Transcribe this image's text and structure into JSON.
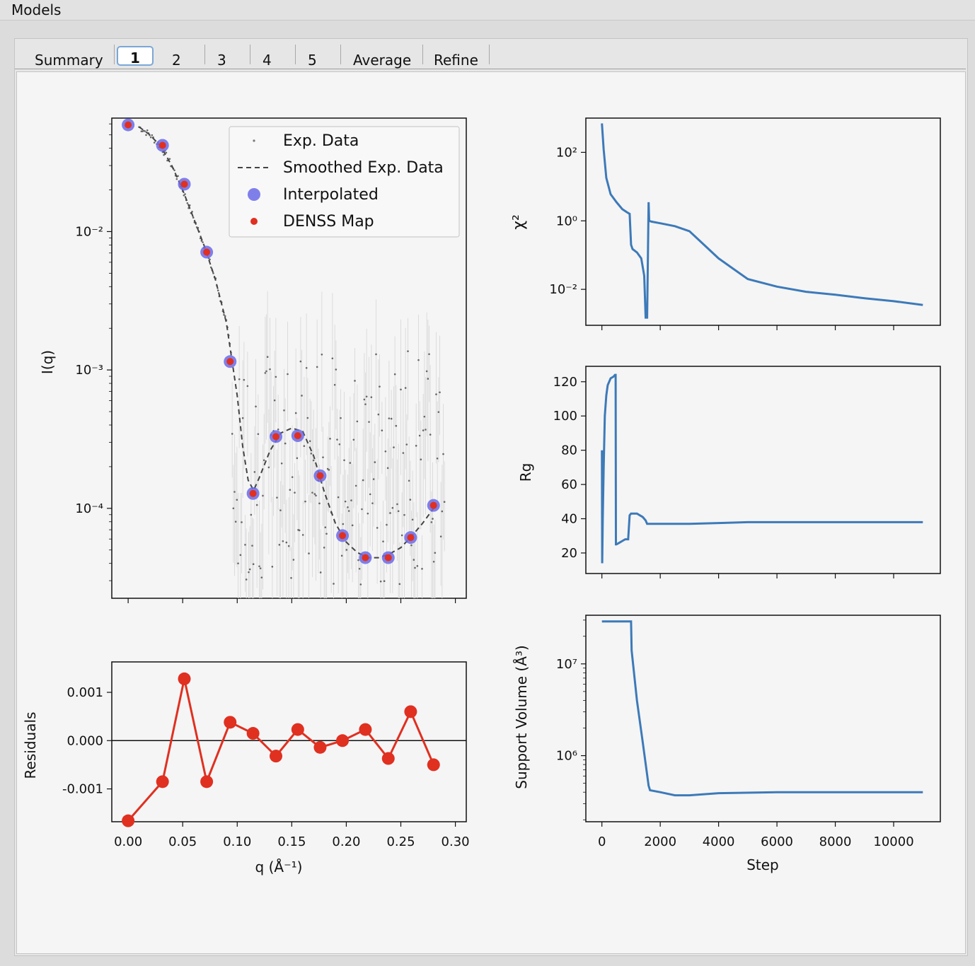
{
  "window": {
    "title": "Models"
  },
  "tabs": [
    {
      "label": "Summary",
      "active": false
    },
    {
      "label": "1",
      "active": true
    },
    {
      "label": "2",
      "active": false
    },
    {
      "label": "3",
      "active": false
    },
    {
      "label": "4",
      "active": false
    },
    {
      "label": "5",
      "active": false
    },
    {
      "label": "Average",
      "active": false
    },
    {
      "label": "Refine",
      "active": false
    }
  ],
  "colors": {
    "exp_data": "#666666",
    "smoothed": "#444444",
    "interpolated": "#6a6ae8",
    "denss": "#e03020",
    "residual": "#e03020",
    "trace": "#3d7ab8"
  },
  "chart_data": [
    {
      "type": "scatter",
      "name": "intensity",
      "ylabel": "I(q)",
      "xlabel": "",
      "yscale": "log",
      "ytick_labels": [
        "10⁻⁴",
        "10⁻³",
        "10⁻²"
      ],
      "legend": [
        "Exp. Data",
        "Smoothed Exp. Data",
        "Interpolated",
        "DENSS Map"
      ],
      "legend_position": "top-right",
      "xlim": [
        -0.015,
        0.31
      ],
      "ylim_log10": [
        -4.65,
        -1.18
      ],
      "x": [
        0.0,
        0.0315,
        0.0515,
        0.072,
        0.0935,
        0.1145,
        0.1355,
        0.1555,
        0.176,
        0.1965,
        0.2175,
        0.2385,
        0.259,
        0.28
      ],
      "interpolated": [
        0.059,
        0.042,
        0.022,
        0.0071,
        0.00115,
        0.000128,
        0.00033,
        0.000335,
        0.000172,
        6.35e-05,
        4.4e-05,
        4.4e-05,
        6.15e-05,
        0.000105
      ],
      "smoothed_x": [
        0.01,
        0.02,
        0.03,
        0.04,
        0.05,
        0.06,
        0.07,
        0.08,
        0.09,
        0.1,
        0.105,
        0.11,
        0.115,
        0.12,
        0.13,
        0.14,
        0.15,
        0.16,
        0.17,
        0.18,
        0.19,
        0.2,
        0.21,
        0.22,
        0.23,
        0.24,
        0.25,
        0.26,
        0.27,
        0.28
      ],
      "smoothed_y": [
        0.057,
        0.05,
        0.041,
        0.03,
        0.02,
        0.0125,
        0.0078,
        0.0045,
        0.0022,
        0.00065,
        0.00028,
        0.00016,
        0.000135,
        0.000165,
        0.00026,
        0.00035,
        0.00038,
        0.00036,
        0.00024,
        0.00013,
        7.8e-05,
        5.7e-05,
        4.8e-05,
        4.4e-05,
        4.4e-05,
        4.7e-05,
        5.2e-05,
        6.3e-05,
        7.8e-05,
        0.0001
      ]
    },
    {
      "type": "line",
      "name": "residuals",
      "ylabel": "Residuals",
      "xlabel": "q (Å⁻¹)",
      "xticks": [
        "0.00",
        "0.05",
        "0.10",
        "0.15",
        "0.20",
        "0.25",
        "0.30"
      ],
      "yticks": [
        "0.001",
        "0.000",
        "-0.001"
      ],
      "xlim": [
        -0.015,
        0.31
      ],
      "ylim": [
        -0.00168,
        0.00163
      ],
      "x": [
        0.0,
        0.0315,
        0.0515,
        0.072,
        0.0935,
        0.1145,
        0.1355,
        0.1555,
        0.176,
        0.1965,
        0.2175,
        0.2385,
        0.259,
        0.28
      ],
      "values": [
        -0.00166,
        -0.00085,
        0.00128,
        -0.00085,
        0.00038,
        0.00015,
        -0.00032,
        0.00023,
        -0.00014,
        0.0,
        0.00023,
        -0.00037,
        0.0006,
        -0.0005
      ]
    },
    {
      "type": "line",
      "name": "chi2",
      "ylabel": "χ²",
      "yscale": "log",
      "ytick_labels": [
        "10²",
        "10⁰",
        "10⁻²"
      ],
      "xlim": [
        -550,
        11600
      ],
      "ylim_log10": [
        -3.05,
        3.0
      ],
      "x": [
        0,
        60,
        150,
        300,
        500,
        700,
        850,
        950,
        1000,
        1050,
        1200,
        1350,
        1450,
        1500,
        1550,
        1600,
        1620,
        1700,
        2000,
        2500,
        3000,
        3500,
        4000,
        4500,
        5000,
        6000,
        7000,
        8000,
        9000,
        10000,
        11000
      ],
      "values": [
        700,
        120,
        18,
        6,
        3.5,
        2.2,
        1.8,
        1.6,
        0.2,
        0.15,
        0.12,
        0.08,
        0.025,
        0.0015,
        0.0015,
        3.5,
        1.0,
        0.95,
        0.85,
        0.7,
        0.5,
        0.2,
        0.08,
        0.04,
        0.02,
        0.012,
        0.0085,
        0.007,
        0.0055,
        0.0045,
        0.0035
      ]
    },
    {
      "type": "line",
      "name": "rg",
      "ylabel": "Rg",
      "yticks": [
        "120",
        "100",
        "80",
        "60",
        "40",
        "20"
      ],
      "xlim": [
        -550,
        11600
      ],
      "ylim": [
        8,
        129
      ],
      "x": [
        0,
        10,
        30,
        60,
        100,
        150,
        200,
        300,
        400,
        450,
        470,
        480,
        500,
        600,
        700,
        800,
        900,
        950,
        1000,
        1100,
        1200,
        1300,
        1400,
        1500,
        1550,
        1600,
        2000,
        3000,
        4000,
        5000,
        6000,
        7000,
        8000,
        9000,
        10000,
        11000
      ],
      "values": [
        80,
        14,
        40,
        70,
        100,
        112,
        118,
        122,
        123,
        124,
        124,
        25,
        25,
        26,
        27,
        28,
        28,
        42,
        43,
        43,
        43,
        42,
        41,
        39,
        37,
        37,
        37,
        37,
        37.5,
        38,
        38,
        38,
        38,
        38,
        38,
        38
      ]
    },
    {
      "type": "line",
      "name": "support-volume",
      "ylabel": "Support Volume (Å³)",
      "xlabel": "Step",
      "yscale": "log",
      "ytick_labels": [
        "10⁷",
        "10⁶"
      ],
      "xticks": [
        "0",
        "2000",
        "4000",
        "6000",
        "8000",
        "10000"
      ],
      "xlim": [
        -550,
        11600
      ],
      "ylim_log10": [
        5.28,
        7.53
      ],
      "x": [
        0,
        500,
        1000,
        1020,
        1200,
        1400,
        1600,
        1650,
        2000,
        2500,
        3000,
        4000,
        6000,
        8000,
        10000,
        11000
      ],
      "values": [
        29000000,
        29000000,
        29000000,
        14000000,
        4000000,
        1400000,
        470000,
        420000,
        400000,
        370000,
        370000,
        390000,
        400000,
        400000,
        400000,
        400000
      ]
    }
  ]
}
